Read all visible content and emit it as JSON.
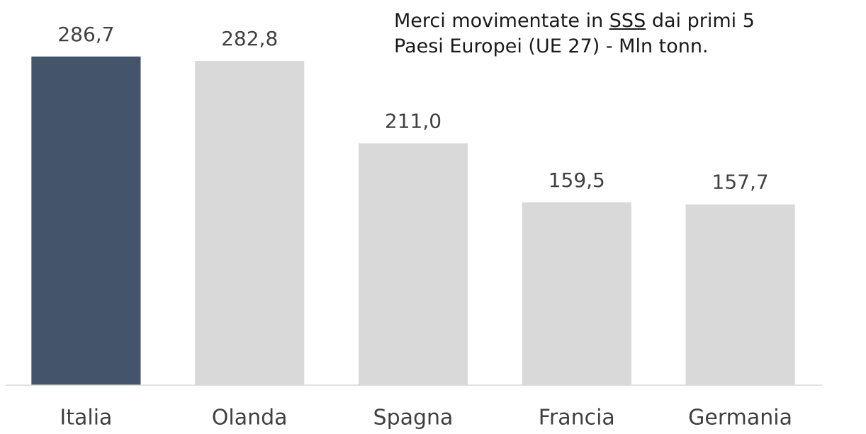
{
  "chart_data": {
    "type": "bar",
    "title": [
      "Merci movimentate in",
      "SSS",
      "dai primi 5",
      "Paesi Europei (UE 27) - Mln tonn."
    ],
    "categories": [
      "Italia",
      "Olanda",
      "Spagna",
      "Francia",
      "Germania"
    ],
    "values": [
      286.7,
      282.8,
      211.0,
      159.5,
      157.7
    ],
    "value_labels": [
      "286,7",
      "282,8",
      "211,0",
      "159,5",
      "157,7"
    ],
    "colors": [
      "#44546a",
      "#d9d9d9",
      "#d9d9d9",
      "#d9d9d9",
      "#d9d9d9"
    ],
    "ylim": [
      0,
      336
    ],
    "grid": false
  }
}
